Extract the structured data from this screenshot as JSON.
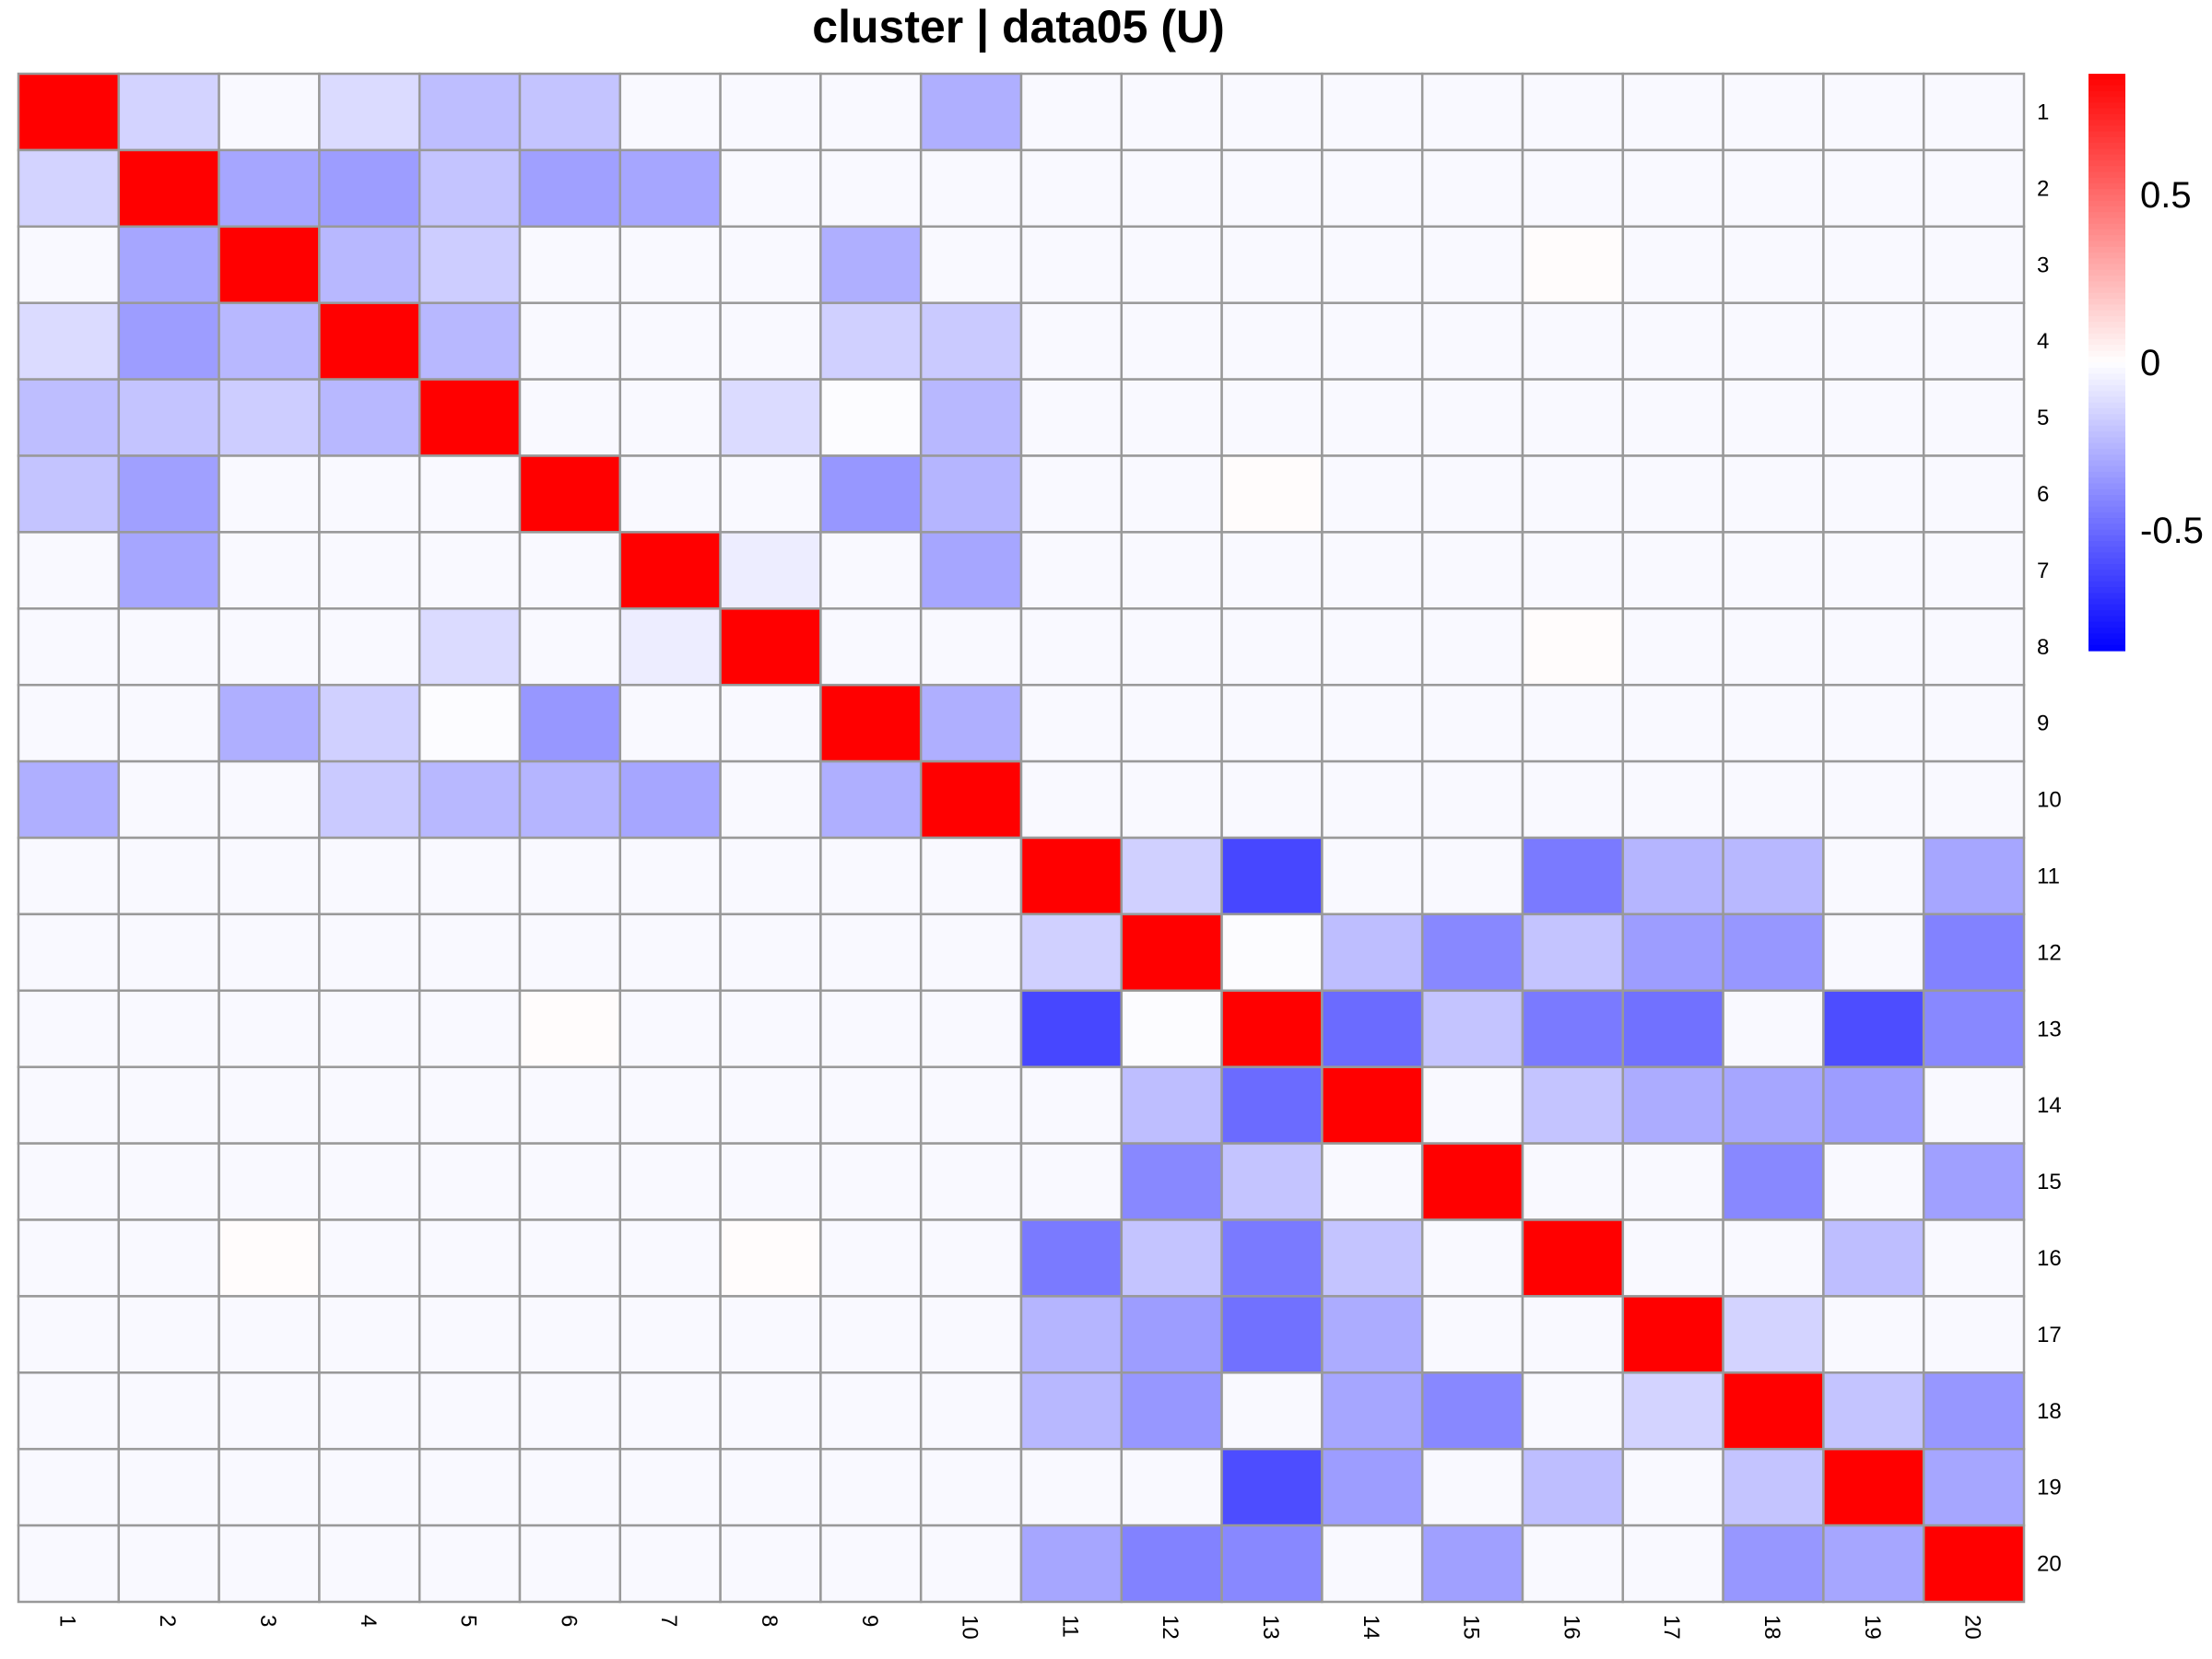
{
  "chart_data": {
    "type": "heatmap",
    "title": "cluster | data05 (U)",
    "row_labels": [
      "1",
      "2",
      "3",
      "4",
      "5",
      "6",
      "7",
      "8",
      "9",
      "10",
      "11",
      "12",
      "13",
      "14",
      "15",
      "16",
      "17",
      "18",
      "19",
      "20"
    ],
    "col_labels": [
      "1",
      "2",
      "3",
      "4",
      "5",
      "6",
      "7",
      "8",
      "9",
      "10",
      "11",
      "12",
      "13",
      "14",
      "15",
      "16",
      "17",
      "18",
      "19",
      "20"
    ],
    "color_scale": {
      "min": -0.86,
      "max": 0.86,
      "low_color": "#0000ff",
      "mid_color": "#ffffff",
      "high_color": "#ff0000",
      "legend_ticks": [
        {
          "value": 0.5,
          "label": "0.5"
        },
        {
          "value": 0,
          "label": "0"
        },
        {
          "value": -0.5,
          "label": "-0.5"
        }
      ]
    },
    "grid_color": "#999999",
    "values": [
      [
        1,
        -0.15,
        -0.02,
        -0.12,
        -0.22,
        -0.2,
        -0.02,
        -0.02,
        -0.02,
        -0.27,
        -0.02,
        -0.02,
        -0.02,
        -0.02,
        -0.02,
        -0.02,
        -0.02,
        -0.02,
        -0.02,
        -0.02
      ],
      [
        -0.15,
        1,
        -0.3,
        -0.33,
        -0.2,
        -0.32,
        -0.3,
        -0.02,
        -0.02,
        -0.02,
        -0.02,
        -0.02,
        -0.02,
        -0.02,
        -0.02,
        -0.02,
        -0.02,
        -0.02,
        -0.02,
        -0.02
      ],
      [
        -0.02,
        -0.3,
        1,
        -0.24,
        -0.17,
        -0.02,
        -0.02,
        -0.02,
        -0.27,
        -0.02,
        -0.02,
        -0.02,
        -0.02,
        -0.02,
        -0.02,
        0.01,
        -0.02,
        -0.02,
        -0.02,
        -0.02
      ],
      [
        -0.12,
        -0.33,
        -0.24,
        1,
        -0.24,
        -0.02,
        -0.02,
        -0.02,
        -0.16,
        -0.18,
        -0.02,
        -0.02,
        -0.02,
        -0.02,
        -0.02,
        -0.02,
        -0.02,
        -0.02,
        -0.02,
        -0.02
      ],
      [
        -0.22,
        -0.2,
        -0.17,
        -0.24,
        1,
        -0.02,
        -0.02,
        -0.12,
        -0.01,
        -0.24,
        -0.02,
        -0.02,
        -0.02,
        -0.02,
        -0.02,
        -0.02,
        -0.02,
        -0.02,
        -0.02,
        -0.02
      ],
      [
        -0.2,
        -0.32,
        -0.02,
        -0.02,
        -0.02,
        1,
        -0.02,
        -0.02,
        -0.35,
        -0.25,
        -0.02,
        -0.02,
        0.01,
        -0.02,
        -0.02,
        -0.02,
        -0.02,
        -0.02,
        -0.02,
        -0.02
      ],
      [
        -0.02,
        -0.3,
        -0.02,
        -0.02,
        -0.02,
        -0.02,
        1,
        -0.06,
        -0.02,
        -0.3,
        -0.02,
        -0.02,
        -0.02,
        -0.02,
        -0.02,
        -0.02,
        -0.02,
        -0.02,
        -0.02,
        -0.02
      ],
      [
        -0.02,
        -0.02,
        -0.02,
        -0.02,
        -0.12,
        -0.02,
        -0.06,
        1,
        -0.02,
        -0.02,
        -0.02,
        -0.02,
        -0.02,
        -0.02,
        -0.02,
        0.01,
        -0.02,
        -0.02,
        -0.02,
        -0.02
      ],
      [
        -0.02,
        -0.02,
        -0.27,
        -0.16,
        -0.01,
        -0.35,
        -0.02,
        -0.02,
        1,
        -0.27,
        -0.02,
        -0.02,
        -0.02,
        -0.02,
        -0.02,
        -0.02,
        -0.02,
        -0.02,
        -0.02,
        -0.02
      ],
      [
        -0.27,
        -0.02,
        -0.02,
        -0.18,
        -0.24,
        -0.25,
        -0.3,
        -0.02,
        -0.27,
        1,
        -0.02,
        -0.02,
        -0.02,
        -0.02,
        -0.02,
        -0.02,
        -0.02,
        -0.02,
        -0.02,
        -0.02
      ],
      [
        -0.02,
        -0.02,
        -0.02,
        -0.02,
        -0.02,
        -0.02,
        -0.02,
        -0.02,
        -0.02,
        -0.02,
        1,
        -0.16,
        -0.62,
        -0.02,
        -0.02,
        -0.45,
        -0.25,
        -0.24,
        -0.02,
        -0.3
      ],
      [
        -0.02,
        -0.02,
        -0.02,
        -0.02,
        -0.02,
        -0.02,
        -0.02,
        -0.02,
        -0.02,
        -0.02,
        -0.16,
        1,
        -0.01,
        -0.22,
        -0.4,
        -0.2,
        -0.33,
        -0.35,
        -0.02,
        -0.42
      ],
      [
        -0.02,
        -0.02,
        -0.02,
        -0.02,
        -0.02,
        0.01,
        -0.02,
        -0.02,
        -0.02,
        -0.02,
        -0.62,
        -0.01,
        1,
        -0.5,
        -0.2,
        -0.45,
        -0.48,
        -0.02,
        -0.6,
        -0.4
      ],
      [
        -0.02,
        -0.02,
        -0.02,
        -0.02,
        -0.02,
        -0.02,
        -0.02,
        -0.02,
        -0.02,
        -0.02,
        -0.02,
        -0.22,
        -0.5,
        1,
        -0.02,
        -0.2,
        -0.28,
        -0.3,
        -0.33,
        -0.02
      ],
      [
        -0.02,
        -0.02,
        -0.02,
        -0.02,
        -0.02,
        -0.02,
        -0.02,
        -0.02,
        -0.02,
        -0.02,
        -0.02,
        -0.4,
        -0.2,
        -0.02,
        1,
        -0.02,
        -0.02,
        -0.4,
        -0.02,
        -0.32
      ],
      [
        -0.02,
        -0.02,
        0.01,
        -0.02,
        -0.02,
        -0.02,
        -0.02,
        0.01,
        -0.02,
        -0.02,
        -0.45,
        -0.2,
        -0.45,
        -0.2,
        -0.02,
        1,
        -0.02,
        -0.02,
        -0.22,
        -0.02
      ],
      [
        -0.02,
        -0.02,
        -0.02,
        -0.02,
        -0.02,
        -0.02,
        -0.02,
        -0.02,
        -0.02,
        -0.02,
        -0.25,
        -0.33,
        -0.48,
        -0.28,
        -0.02,
        -0.02,
        1,
        -0.15,
        -0.02,
        -0.02
      ],
      [
        -0.02,
        -0.02,
        -0.02,
        -0.02,
        -0.02,
        -0.02,
        -0.02,
        -0.02,
        -0.02,
        -0.02,
        -0.24,
        -0.35,
        -0.02,
        -0.3,
        -0.4,
        -0.02,
        -0.15,
        1,
        -0.2,
        -0.35
      ],
      [
        -0.02,
        -0.02,
        -0.02,
        -0.02,
        -0.02,
        -0.02,
        -0.02,
        -0.02,
        -0.02,
        -0.02,
        -0.02,
        -0.02,
        -0.6,
        -0.33,
        -0.02,
        -0.22,
        -0.02,
        -0.2,
        1,
        -0.3
      ],
      [
        -0.02,
        -0.02,
        -0.02,
        -0.02,
        -0.02,
        -0.02,
        -0.02,
        -0.02,
        -0.02,
        -0.02,
        -0.3,
        -0.42,
        -0.4,
        -0.02,
        -0.32,
        -0.02,
        -0.02,
        -0.35,
        -0.3,
        1
      ]
    ]
  }
}
